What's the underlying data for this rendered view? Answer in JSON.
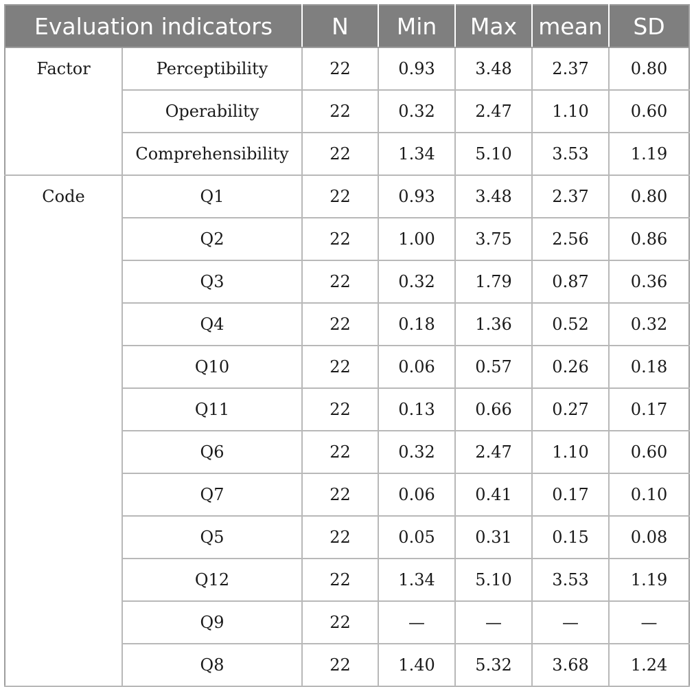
{
  "columns": [
    "Evaluation indicators",
    "N",
    "Min",
    "Max",
    "mean",
    "SD"
  ],
  "groups": [
    {
      "label": "Factor",
      "rows": [
        {
          "indicator": "Perceptibility",
          "n": "22",
          "min": "0.93",
          "max": "3.48",
          "mean": "2.37",
          "sd": "0.80"
        },
        {
          "indicator": "Operability",
          "n": "22",
          "min": "0.32",
          "max": "2.47",
          "mean": "1.10",
          "sd": "0.60"
        },
        {
          "indicator": "Comprehensibility",
          "n": "22",
          "min": "1.34",
          "max": "5.10",
          "mean": "3.53",
          "sd": "1.19"
        }
      ]
    },
    {
      "label": "Code",
      "rows": [
        {
          "indicator": "Q1",
          "n": "22",
          "min": "0.93",
          "max": "3.48",
          "mean": "2.37",
          "sd": "0.80"
        },
        {
          "indicator": "Q2",
          "n": "22",
          "min": "1.00",
          "max": "3.75",
          "mean": "2.56",
          "sd": "0.86"
        },
        {
          "indicator": "Q3",
          "n": "22",
          "min": "0.32",
          "max": "1.79",
          "mean": "0.87",
          "sd": "0.36"
        },
        {
          "indicator": "Q4",
          "n": "22",
          "min": "0.18",
          "max": "1.36",
          "mean": "0.52",
          "sd": "0.32"
        },
        {
          "indicator": "Q10",
          "n": "22",
          "min": "0.06",
          "max": "0.57",
          "mean": "0.26",
          "sd": "0.18"
        },
        {
          "indicator": "Q11",
          "n": "22",
          "min": "0.13",
          "max": "0.66",
          "mean": "0.27",
          "sd": "0.17"
        },
        {
          "indicator": "Q6",
          "n": "22",
          "min": "0.32",
          "max": "2.47",
          "mean": "1.10",
          "sd": "0.60"
        },
        {
          "indicator": "Q7",
          "n": "22",
          "min": "0.06",
          "max": "0.41",
          "mean": "0.17",
          "sd": "0.10"
        },
        {
          "indicator": "Q5",
          "n": "22",
          "min": "0.05",
          "max": "0.31",
          "mean": "0.15",
          "sd": "0.08"
        },
        {
          "indicator": "Q12",
          "n": "22",
          "min": "1.34",
          "max": "5.10",
          "mean": "3.53",
          "sd": "1.19"
        },
        {
          "indicator": "Q9",
          "n": "22",
          "min": "—",
          "max": "—",
          "mean": "—",
          "sd": "—"
        },
        {
          "indicator": "Q8",
          "n": "22",
          "min": "1.40",
          "max": "5.32",
          "mean": "3.68",
          "sd": "1.24"
        }
      ]
    }
  ]
}
